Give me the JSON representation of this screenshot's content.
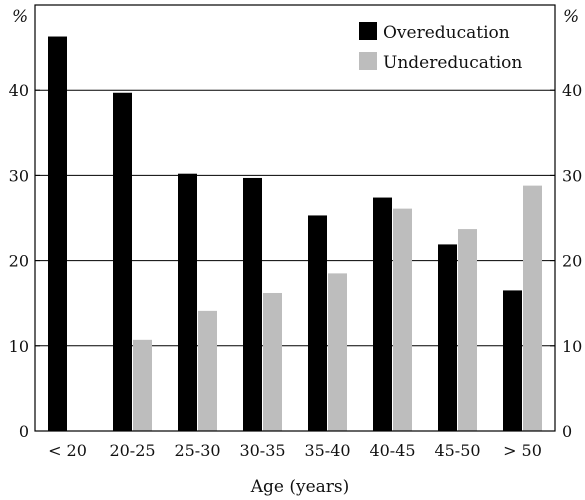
{
  "chart_data": {
    "type": "bar",
    "categories": [
      "< 20",
      "20-25",
      "25-30",
      "30-35",
      "35-40",
      "40-45",
      "45-50",
      "> 50"
    ],
    "series": [
      {
        "name": "Overeducation",
        "values": [
          46.3,
          39.7,
          30.2,
          29.7,
          25.3,
          27.4,
          21.9,
          16.5
        ],
        "color": "#000000"
      },
      {
        "name": "Undereducation",
        "values": [
          null,
          10.7,
          14.1,
          16.2,
          18.5,
          26.1,
          23.7,
          28.8
        ],
        "color": "#bdbdbd"
      }
    ],
    "xlabel": "Age (years)",
    "y_unit_left": "%",
    "y_unit_right": "%",
    "ylim": [
      0,
      50
    ],
    "yticks": [
      0,
      10,
      20,
      30,
      40
    ],
    "grid": true,
    "legend_position": "top-right"
  }
}
